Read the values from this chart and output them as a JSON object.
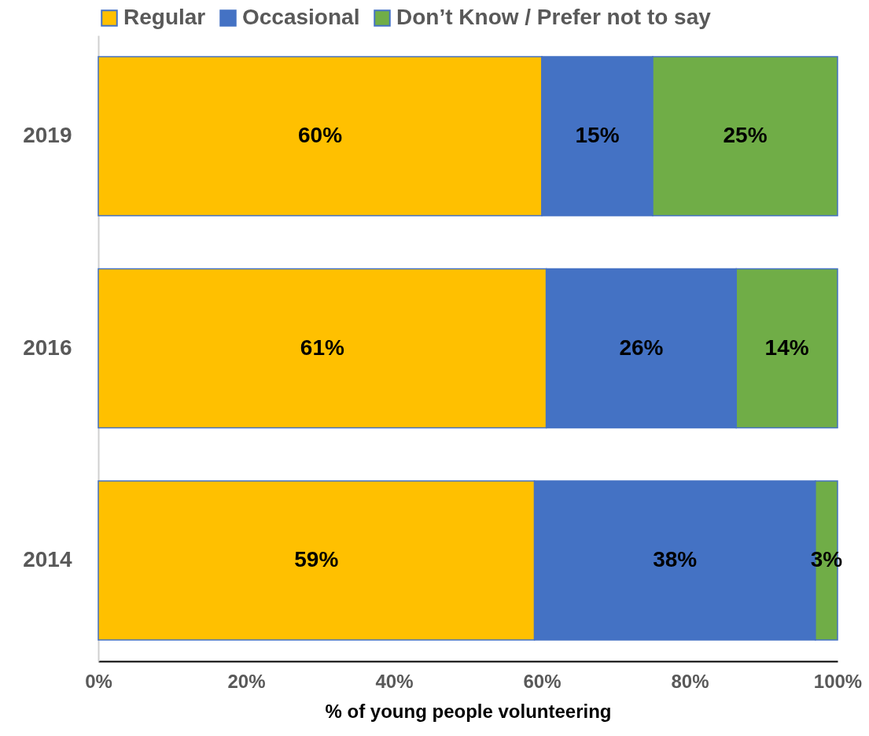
{
  "chart_data": {
    "type": "bar",
    "orientation": "horizontal",
    "stacked": true,
    "xlabel": "% of young people volunteering",
    "categories": [
      "2019",
      "2016",
      "2014"
    ],
    "series": [
      {
        "name": "Regular",
        "color": "#ffc000",
        "values": [
          60,
          60.6,
          59
        ],
        "value_labels": [
          "60%",
          "61%",
          "59%"
        ]
      },
      {
        "name": "Occasional",
        "color": "#4472c4",
        "values": [
          15,
          25.7,
          38
        ],
        "value_labels": [
          "15%",
          "26%",
          "38%"
        ]
      },
      {
        "name": "Don’t Know / Prefer not to say",
        "color": "#70ad47",
        "values": [
          25,
          13.7,
          3
        ],
        "value_labels": [
          "25%",
          "14%",
          "3%"
        ]
      }
    ],
    "xlim": [
      0,
      100
    ],
    "xticks": [
      {
        "value": 0,
        "label": "0%"
      },
      {
        "value": 20,
        "label": "20%"
      },
      {
        "value": 40,
        "label": "40%"
      },
      {
        "value": 60,
        "label": "60%"
      },
      {
        "value": 80,
        "label": "80%"
      },
      {
        "value": 100,
        "label": "100%"
      }
    ],
    "legend": "top",
    "grid": false
  }
}
